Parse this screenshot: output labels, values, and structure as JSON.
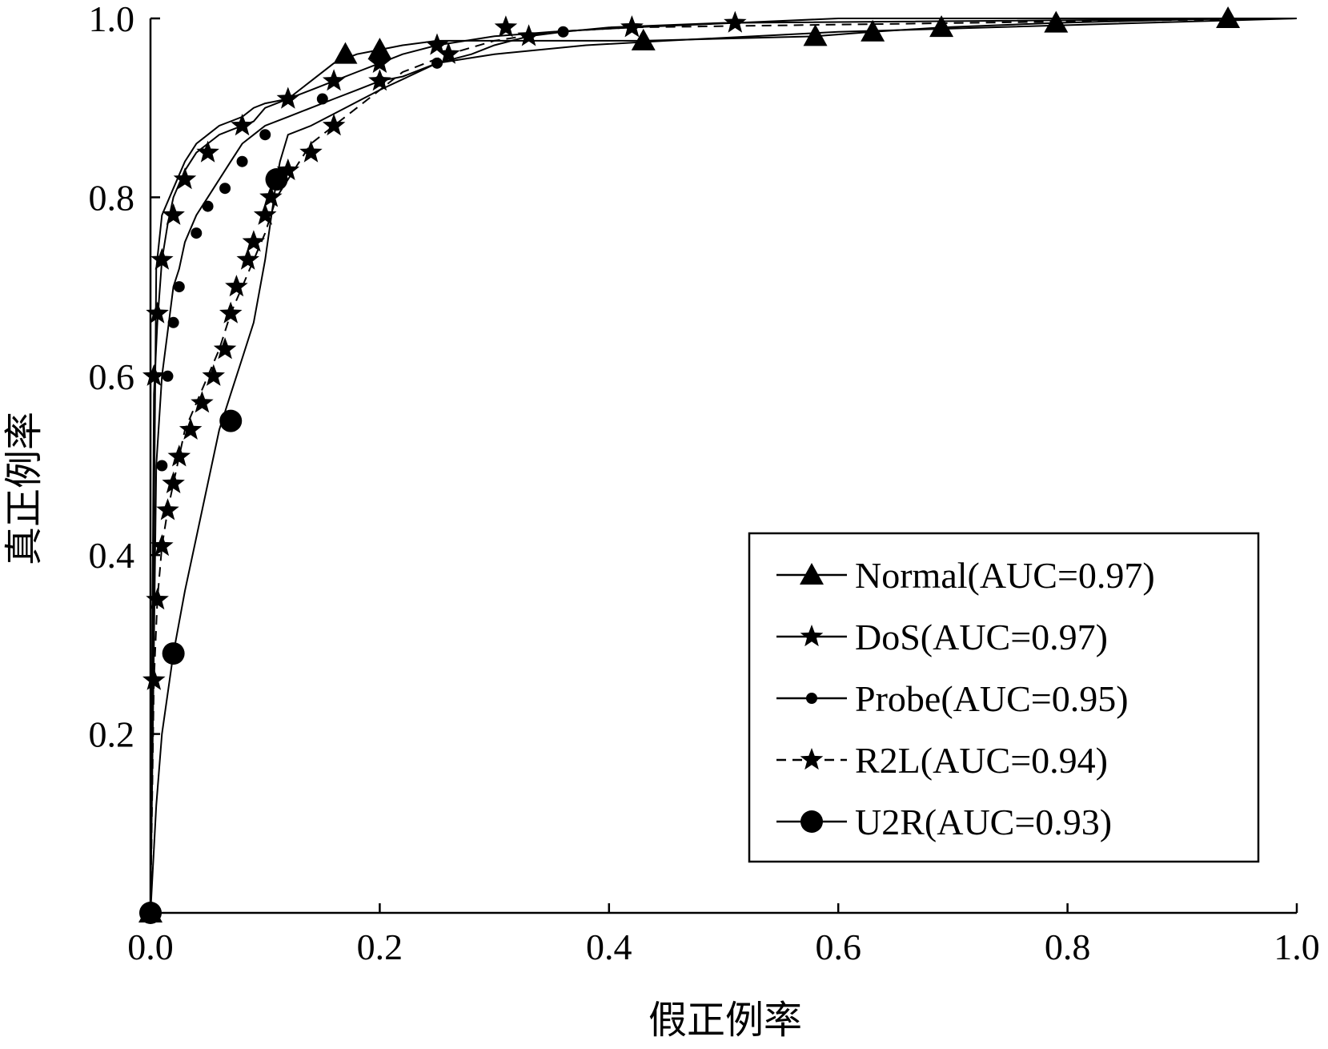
{
  "chart_data": {
    "type": "line",
    "title": "",
    "xlabel": "假正例率",
    "ylabel": "真正例率",
    "xlim": [
      0,
      1
    ],
    "ylim": [
      0,
      1
    ],
    "x_ticks": [
      "0.0",
      "0.2",
      "0.4",
      "0.6",
      "0.8",
      "1.0"
    ],
    "y_ticks": [
      "0.2",
      "0.4",
      "0.6",
      "0.8",
      "1.0"
    ],
    "grid": false,
    "legend_position": "bottom-right",
    "series": [
      {
        "name": "Normal(AUC=0.97)",
        "marker": "triangle",
        "dash": "solid",
        "x": [
          0,
          0.005,
          0.01,
          0.02,
          0.03,
          0.04,
          0.05,
          0.06,
          0.07,
          0.08,
          0.09,
          0.1,
          0.12,
          0.14,
          0.16,
          0.18,
          0.2,
          0.22,
          0.25,
          0.3,
          0.35,
          0.4,
          0.43,
          0.58,
          0.63,
          0.69,
          0.79,
          0.94,
          1.0
        ],
        "y": [
          0,
          0.72,
          0.78,
          0.81,
          0.84,
          0.86,
          0.87,
          0.88,
          0.885,
          0.89,
          0.9,
          0.905,
          0.91,
          0.93,
          0.95,
          0.96,
          0.965,
          0.97,
          0.975,
          0.975,
          0.975,
          0.975,
          0.975,
          0.98,
          0.985,
          0.99,
          0.995,
          1.0,
          1.0
        ]
      },
      {
        "name": "DoS(AUC=0.97)",
        "marker": "star",
        "dash": "solid",
        "x": [
          0,
          0.003,
          0.006,
          0.01,
          0.015,
          0.02,
          0.03,
          0.04,
          0.05,
          0.06,
          0.07,
          0.08,
          0.09,
          0.1,
          0.12,
          0.14,
          0.16,
          0.18,
          0.2,
          0.22,
          0.25,
          0.3,
          0.35,
          0.42,
          0.51,
          0.6,
          1.0
        ],
        "y": [
          0,
          0.58,
          0.66,
          0.73,
          0.77,
          0.8,
          0.83,
          0.85,
          0.86,
          0.87,
          0.875,
          0.88,
          0.885,
          0.9,
          0.91,
          0.92,
          0.93,
          0.94,
          0.95,
          0.96,
          0.97,
          0.98,
          0.985,
          0.99,
          0.995,
          1.0,
          1.0
        ]
      },
      {
        "name": "Probe(AUC=0.95)",
        "marker": "dot",
        "dash": "solid",
        "x": [
          0,
          0.005,
          0.01,
          0.015,
          0.02,
          0.025,
          0.03,
          0.04,
          0.05,
          0.06,
          0.07,
          0.08,
          0.09,
          0.1,
          0.12,
          0.14,
          0.16,
          0.18,
          0.2,
          0.22,
          0.25,
          0.28,
          0.3,
          0.33,
          0.36,
          0.4,
          0.5,
          1.0
        ],
        "y": [
          0,
          0.5,
          0.6,
          0.65,
          0.7,
          0.72,
          0.75,
          0.78,
          0.8,
          0.82,
          0.84,
          0.86,
          0.87,
          0.88,
          0.89,
          0.9,
          0.91,
          0.92,
          0.93,
          0.935,
          0.95,
          0.96,
          0.97,
          0.98,
          0.985,
          0.99,
          0.995,
          1.0
        ]
      },
      {
        "name": "R2L(AUC=0.94)",
        "marker": "star",
        "dash": "dashed",
        "x": [
          0,
          0.003,
          0.006,
          0.01,
          0.015,
          0.02,
          0.025,
          0.03,
          0.04,
          0.05,
          0.06,
          0.07,
          0.08,
          0.09,
          0.1,
          0.11,
          0.12,
          0.13,
          0.14,
          0.16,
          0.18,
          0.2,
          0.22,
          0.24,
          0.26,
          0.3,
          0.35,
          0.42,
          1.0
        ],
        "y": [
          0,
          0.26,
          0.35,
          0.41,
          0.45,
          0.48,
          0.51,
          0.54,
          0.57,
          0.6,
          0.63,
          0.67,
          0.7,
          0.73,
          0.76,
          0.8,
          0.82,
          0.84,
          0.86,
          0.88,
          0.9,
          0.92,
          0.94,
          0.95,
          0.96,
          0.975,
          0.985,
          0.99,
          1.0
        ]
      },
      {
        "name": "U2R(AUC=0.93)",
        "marker": "circle-large",
        "dash": "solid",
        "x": [
          0,
          0.005,
          0.01,
          0.02,
          0.03,
          0.04,
          0.05,
          0.06,
          0.07,
          0.08,
          0.09,
          0.1,
          0.11,
          0.113,
          0.12,
          0.14,
          0.17,
          0.2,
          0.25,
          0.3,
          0.38,
          0.45,
          0.6,
          1.0
        ],
        "y": [
          0,
          0.12,
          0.2,
          0.29,
          0.36,
          0.42,
          0.48,
          0.54,
          0.58,
          0.62,
          0.66,
          0.73,
          0.82,
          0.84,
          0.87,
          0.88,
          0.9,
          0.92,
          0.95,
          0.96,
          0.97,
          0.975,
          0.985,
          1.0
        ]
      }
    ],
    "markers": {
      "Normal(AUC=0.97)": [
        [
          0,
          0
        ],
        [
          0.17,
          0.96
        ],
        [
          0.2,
          0.965
        ],
        [
          0.43,
          0.975
        ],
        [
          0.58,
          0.98
        ],
        [
          0.63,
          0.985
        ],
        [
          0.69,
          0.99
        ],
        [
          0.79,
          0.995
        ],
        [
          0.94,
          1.0
        ]
      ],
      "DoS(AUC=0.97)": [
        [
          0.003,
          0.6
        ],
        [
          0.006,
          0.67
        ],
        [
          0.01,
          0.73
        ],
        [
          0.02,
          0.78
        ],
        [
          0.03,
          0.82
        ],
        [
          0.05,
          0.85
        ],
        [
          0.08,
          0.88
        ],
        [
          0.12,
          0.91
        ],
        [
          0.16,
          0.93
        ],
        [
          0.2,
          0.95
        ],
        [
          0.25,
          0.97
        ],
        [
          0.31,
          0.99
        ],
        [
          0.42,
          0.99
        ],
        [
          0.51,
          0.995
        ]
      ],
      "Probe(AUC=0.95)": [
        [
          0.01,
          0.5
        ],
        [
          0.015,
          0.6
        ],
        [
          0.02,
          0.66
        ],
        [
          0.025,
          0.7
        ],
        [
          0.04,
          0.76
        ],
        [
          0.05,
          0.79
        ],
        [
          0.065,
          0.81
        ],
        [
          0.08,
          0.84
        ],
        [
          0.1,
          0.87
        ],
        [
          0.15,
          0.91
        ],
        [
          0.2,
          0.93
        ],
        [
          0.25,
          0.95
        ],
        [
          0.36,
          0.985
        ]
      ],
      "R2L(AUC=0.94)": [
        [
          0.003,
          0.26
        ],
        [
          0.006,
          0.35
        ],
        [
          0.01,
          0.41
        ],
        [
          0.015,
          0.45
        ],
        [
          0.02,
          0.48
        ],
        [
          0.025,
          0.51
        ],
        [
          0.035,
          0.54
        ],
        [
          0.045,
          0.57
        ],
        [
          0.055,
          0.6
        ],
        [
          0.065,
          0.63
        ],
        [
          0.07,
          0.67
        ],
        [
          0.075,
          0.7
        ],
        [
          0.085,
          0.73
        ],
        [
          0.09,
          0.75
        ],
        [
          0.1,
          0.78
        ],
        [
          0.105,
          0.8
        ],
        [
          0.12,
          0.83
        ],
        [
          0.14,
          0.85
        ],
        [
          0.16,
          0.88
        ],
        [
          0.2,
          0.93
        ],
        [
          0.26,
          0.96
        ],
        [
          0.33,
          0.98
        ],
        [
          0.42,
          0.99
        ]
      ],
      "U2R(AUC=0.93)": [
        [
          0,
          0
        ],
        [
          0.02,
          0.29
        ],
        [
          0.07,
          0.55
        ],
        [
          0.11,
          0.82
        ]
      ]
    }
  }
}
